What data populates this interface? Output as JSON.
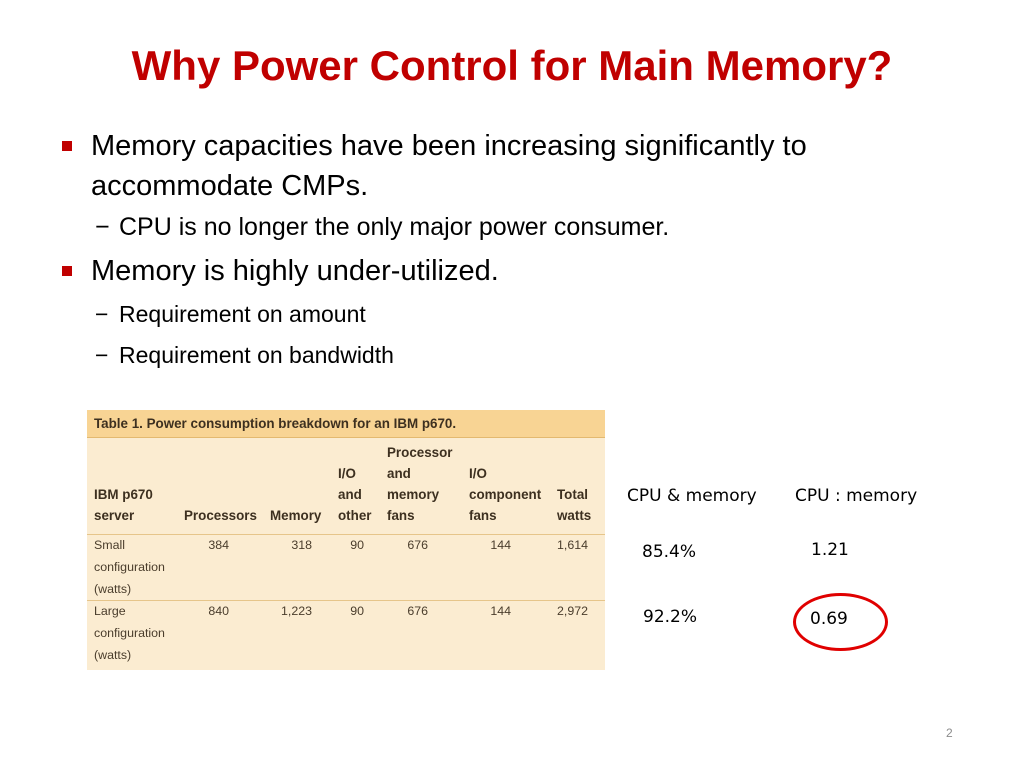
{
  "slide": {
    "title": "Why Power Control for Main Memory?",
    "page_number": "2",
    "accent_color": "#c00000"
  },
  "bullets": [
    {
      "text": "Memory capacities have been increasing significantly to accommodate CMPs.",
      "subs": [
        "CPU is no longer the only major power consumer."
      ]
    },
    {
      "text": "Memory is highly under-utilized.",
      "subs": [
        "Requirement on amount",
        "Requirement on bandwidth"
      ]
    }
  ],
  "sub_marker": "−",
  "table": {
    "caption": "Table 1. Power consumption breakdown for an IBM p670.",
    "headers": [
      [
        "IBM p670",
        "server"
      ],
      [
        "Processors"
      ],
      [
        "Memory"
      ],
      [
        "I/O",
        "and",
        "other"
      ],
      [
        "Processor",
        "and",
        "memory",
        "fans"
      ],
      [
        "I/O",
        "component",
        "fans"
      ],
      [
        "Total",
        "watts"
      ]
    ],
    "rows": [
      {
        "label": [
          "Small",
          "configuration",
          "(watts)"
        ],
        "values": [
          "384",
          "318",
          "90",
          "676",
          "144",
          "1,614"
        ]
      },
      {
        "label": [
          "Large",
          "configuration",
          "(watts)"
        ],
        "values": [
          "840",
          "1,223",
          "90",
          "676",
          "144",
          "2,972"
        ]
      }
    ]
  },
  "side_table": {
    "col1_header": "CPU & memory",
    "col2_header": "CPU : memory",
    "rows": [
      {
        "share": "85.4%",
        "ratio": "1.21"
      },
      {
        "share": "92.2%",
        "ratio": "0.69"
      }
    ],
    "highlight_color": "#e00000"
  }
}
